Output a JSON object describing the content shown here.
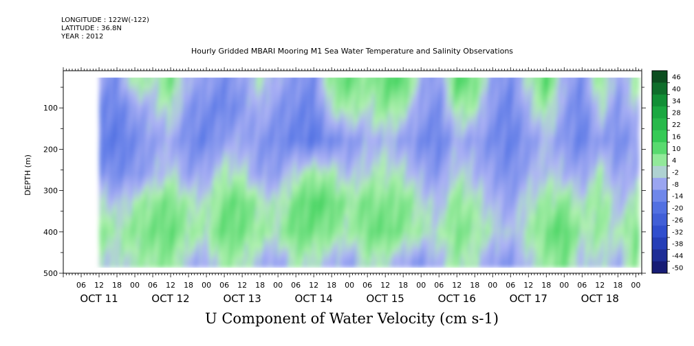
{
  "header": {
    "longitude": "LONGITUDE : 122W(-122)",
    "latitude": "LATITUDE : 36.8N",
    "year": "YEAR : 2012",
    "title": "Hourly Gridded MBARI Mooring M1 Sea Water Temperature and Salinity Observations"
  },
  "colors": {
    "negative_min": "#1a1a6e",
    "negative_mid": "#3d6ee0",
    "near_zero_neg": "#9fa8f0",
    "near_zero_pos": "#a8f0a8",
    "positive_mid": "#22cc55",
    "positive_max": "#0a3d1a"
  },
  "chart_data": {
    "type": "heatmap",
    "title": "Hourly Gridded MBARI Mooring M1 Sea Water Temperature and Salinity Observations",
    "variable_label": "U Component of Water Velocity (cm s-1)",
    "ylabel": "DEPTH (m)",
    "y_ticks": [
      "100",
      "200",
      "300",
      "400",
      "500"
    ],
    "y_tick_values": [
      100,
      200,
      300,
      400,
      500
    ],
    "ylim": [
      500,
      10
    ],
    "y_inverted": true,
    "x_hour_labels": [
      "06",
      "12",
      "18",
      "00",
      "06",
      "12",
      "18",
      "00",
      "06",
      "12",
      "18",
      "00",
      "06",
      "12",
      "18",
      "00",
      "06",
      "12",
      "18",
      "00",
      "06",
      "12",
      "18",
      "00",
      "06",
      "12",
      "18",
      "00",
      "06",
      "12",
      "18",
      "00"
    ],
    "x_hours_since_oct10_00": [
      30,
      36,
      42,
      48,
      54,
      60,
      66,
      72,
      78,
      84,
      90,
      96,
      102,
      108,
      114,
      120,
      126,
      132,
      138,
      144,
      150,
      156,
      162,
      168,
      174,
      180,
      186,
      192,
      198,
      204,
      210,
      216
    ],
    "x_days": [
      {
        "label": "OCT 11",
        "noon_hours": 36
      },
      {
        "label": "OCT 12",
        "noon_hours": 60
      },
      {
        "label": "OCT 13",
        "noon_hours": 84
      },
      {
        "label": "OCT 14",
        "noon_hours": 108
      },
      {
        "label": "OCT 15",
        "noon_hours": 132
      },
      {
        "label": "OCT 16",
        "noon_hours": 156
      },
      {
        "label": "OCT 17",
        "noon_hours": 180
      },
      {
        "label": "OCT 18",
        "noon_hours": 204
      }
    ],
    "xlim_hours": [
      24,
      218
    ],
    "data_start_hours": 36,
    "depth_coverage_m": [
      20,
      485
    ],
    "colorbar": {
      "levels": [
        -50,
        -44,
        -38,
        -32,
        -26,
        -20,
        -14,
        -8,
        -2,
        4,
        10,
        16,
        22,
        28,
        34,
        40,
        46
      ],
      "level_labels": [
        "-50",
        "-44",
        "-38",
        "-32",
        "-26",
        "-20",
        "-14",
        "-8",
        "-2",
        "4",
        "10",
        "16",
        "22",
        "28",
        "34",
        "40",
        "46"
      ]
    },
    "depth_profile_rows": [
      {
        "depth_m": 40,
        "values": [
          2,
          -6,
          -10,
          6,
          2,
          10,
          -4,
          -6,
          -10,
          -6,
          2,
          -4,
          -8,
          -10,
          8,
          12,
          6,
          12,
          14,
          -4,
          -8,
          14,
          10,
          -6,
          -10,
          2,
          14,
          -4,
          -10,
          8,
          -6,
          4
        ]
      },
      {
        "depth_m": 100,
        "values": [
          -4,
          -10,
          -12,
          -6,
          -2,
          4,
          -8,
          -10,
          -12,
          -8,
          -2,
          -8,
          -10,
          -12,
          2,
          6,
          2,
          8,
          4,
          -6,
          -10,
          6,
          4,
          -8,
          -12,
          -2,
          6,
          -6,
          -12,
          2,
          -8,
          0
        ]
      },
      {
        "depth_m": 180,
        "values": [
          -6,
          -12,
          -14,
          -10,
          -6,
          -4,
          -10,
          -12,
          -6,
          -4,
          -8,
          -10,
          -12,
          -14,
          -10,
          -8,
          -4,
          -2,
          -6,
          -10,
          -12,
          -4,
          -6,
          -10,
          -12,
          -8,
          -2,
          -8,
          -12,
          -6,
          -10,
          -6
        ]
      },
      {
        "depth_m": 260,
        "values": [
          -2,
          -8,
          -10,
          -8,
          -4,
          2,
          -6,
          -4,
          4,
          2,
          -6,
          -6,
          2,
          6,
          4,
          -2,
          2,
          4,
          2,
          -4,
          -8,
          2,
          -2,
          -6,
          -10,
          -4,
          0,
          -2,
          -6,
          4,
          -6,
          -2
        ]
      },
      {
        "depth_m": 330,
        "values": [
          8,
          4,
          -2,
          4,
          8,
          10,
          4,
          2,
          10,
          12,
          4,
          2,
          10,
          14,
          12,
          6,
          10,
          8,
          10,
          2,
          -2,
          8,
          4,
          -2,
          -6,
          2,
          6,
          8,
          2,
          8,
          -2,
          4
        ]
      },
      {
        "depth_m": 400,
        "values": [
          10,
          8,
          4,
          8,
          10,
          12,
          6,
          4,
          12,
          10,
          6,
          4,
          12,
          10,
          8,
          4,
          10,
          12,
          8,
          4,
          2,
          10,
          6,
          2,
          -2,
          4,
          10,
          14,
          4,
          6,
          2,
          10
        ]
      },
      {
        "depth_m": 470,
        "values": [
          4,
          2,
          0,
          4,
          6,
          8,
          -2,
          -4,
          6,
          4,
          -2,
          -6,
          4,
          2,
          -2,
          -6,
          4,
          2,
          -4,
          -8,
          -2,
          6,
          2,
          -6,
          -8,
          0,
          6,
          10,
          -2,
          2,
          -4,
          8
        ]
      }
    ]
  },
  "axes_labels": {
    "ylabel": "DEPTH (m)",
    "variable_label": "U Component of Water Velocity (cm s-1)"
  }
}
